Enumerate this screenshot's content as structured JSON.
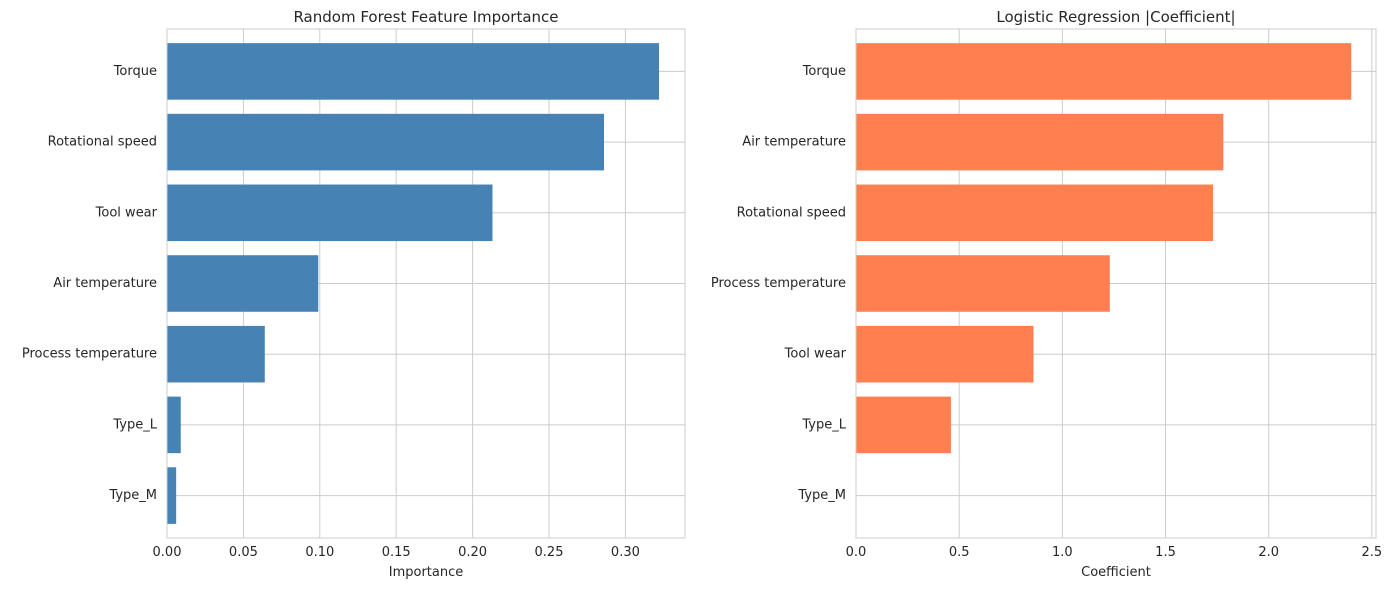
{
  "chart_data": [
    {
      "type": "bar",
      "orientation": "horizontal",
      "title": "Random Forest Feature Importance",
      "xlabel": "Importance",
      "ylabel": "",
      "categories": [
        "Torque",
        "Rotational speed",
        "Tool wear",
        "Air temperature",
        "Process temperature",
        "Type_L",
        "Type_M"
      ],
      "values": [
        0.322,
        0.286,
        0.213,
        0.099,
        0.064,
        0.009,
        0.006
      ],
      "xlim": [
        0,
        0.339
      ],
      "xticks": [
        0.0,
        0.05,
        0.1,
        0.15,
        0.2,
        0.25,
        0.3
      ],
      "xtick_labels": [
        "0.00",
        "0.05",
        "0.10",
        "0.15",
        "0.20",
        "0.25",
        "0.30"
      ],
      "grid": true,
      "color": "#4682b4"
    },
    {
      "type": "bar",
      "orientation": "horizontal",
      "title": "Logistic Regression |Coefficient|",
      "xlabel": "Coefficient",
      "ylabel": "",
      "categories": [
        "Torque",
        "Air temperature",
        "Rotational speed",
        "Process temperature",
        "Tool wear",
        "Type_L",
        "Type_M"
      ],
      "values": [
        2.4,
        1.78,
        1.73,
        1.23,
        0.86,
        0.46,
        0.0
      ],
      "xlim": [
        0,
        2.52
      ],
      "xticks": [
        0.0,
        0.5,
        1.0,
        1.5,
        2.0,
        2.5
      ],
      "xtick_labels": [
        "0.0",
        "0.5",
        "1.0",
        "1.5",
        "2.0",
        "2.5"
      ],
      "grid": true,
      "color": "#ff7f50"
    }
  ]
}
